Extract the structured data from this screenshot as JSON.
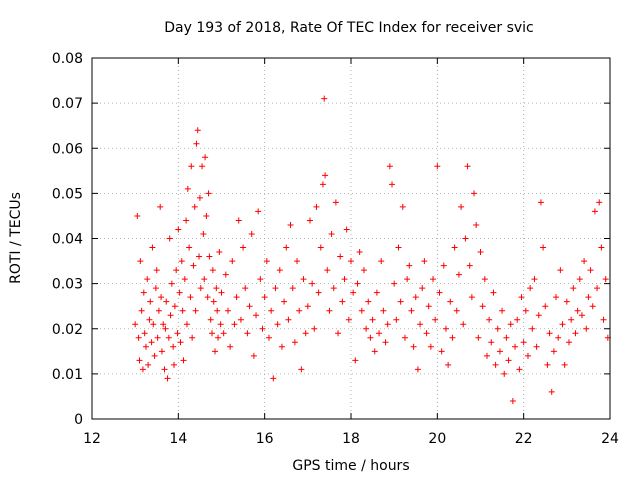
{
  "chart_data": {
    "type": "scatter",
    "title": "Day 193 of 2018, Rate Of TEC Index for receiver svic",
    "xlabel": "GPS time / hours",
    "ylabel": "ROTI / TECUs",
    "xlim": [
      12,
      24
    ],
    "ylim": [
      0,
      0.08
    ],
    "xticks": [
      12,
      14,
      16,
      18,
      20,
      22,
      24
    ],
    "xtick_labels": [
      "12",
      "14",
      "16",
      "18",
      "20",
      "22",
      "24"
    ],
    "yticks": [
      0,
      0.01,
      0.02,
      0.03,
      0.04,
      0.05,
      0.06,
      0.07,
      0.08
    ],
    "ytick_labels": [
      "0",
      "0.01",
      "0.02",
      "0.03",
      "0.04",
      "0.05",
      "0.06",
      "0.07",
      "0.08"
    ],
    "grid": true,
    "marker": "+",
    "color": "#ff0000",
    "series": [
      {
        "name": "ROTI",
        "points": [
          [
            13.0,
            0.021
          ],
          [
            13.05,
            0.045
          ],
          [
            13.08,
            0.018
          ],
          [
            13.1,
            0.013
          ],
          [
            13.12,
            0.035
          ],
          [
            13.15,
            0.024
          ],
          [
            13.18,
            0.011
          ],
          [
            13.2,
            0.028
          ],
          [
            13.22,
            0.019
          ],
          [
            13.25,
            0.016
          ],
          [
            13.28,
            0.031
          ],
          [
            13.3,
            0.012
          ],
          [
            13.33,
            0.022
          ],
          [
            13.35,
            0.026
          ],
          [
            13.38,
            0.017
          ],
          [
            13.4,
            0.038
          ],
          [
            13.42,
            0.021
          ],
          [
            13.45,
            0.014
          ],
          [
            13.48,
            0.029
          ],
          [
            13.5,
            0.033
          ],
          [
            13.52,
            0.018
          ],
          [
            13.55,
            0.024
          ],
          [
            13.58,
            0.047
          ],
          [
            13.6,
            0.027
          ],
          [
            13.62,
            0.015
          ],
          [
            13.65,
            0.021
          ],
          [
            13.68,
            0.011
          ],
          [
            13.7,
            0.02
          ],
          [
            13.72,
            0.026
          ],
          [
            13.75,
            0.009
          ],
          [
            13.78,
            0.018
          ],
          [
            13.8,
            0.04
          ],
          [
            13.82,
            0.023
          ],
          [
            13.85,
            0.03
          ],
          [
            13.88,
            0.016
          ],
          [
            13.9,
            0.012
          ],
          [
            13.92,
            0.025
          ],
          [
            13.95,
            0.033
          ],
          [
            13.98,
            0.019
          ],
          [
            14.0,
            0.042
          ],
          [
            14.03,
            0.028
          ],
          [
            14.05,
            0.017
          ],
          [
            14.08,
            0.035
          ],
          [
            14.1,
            0.024
          ],
          [
            14.12,
            0.013
          ],
          [
            14.15,
            0.031
          ],
          [
            14.18,
            0.044
          ],
          [
            14.2,
            0.021
          ],
          [
            14.22,
            0.051
          ],
          [
            14.25,
            0.038
          ],
          [
            14.28,
            0.027
          ],
          [
            14.3,
            0.056
          ],
          [
            14.32,
            0.018
          ],
          [
            14.35,
            0.034
          ],
          [
            14.38,
            0.047
          ],
          [
            14.4,
            0.024
          ],
          [
            14.42,
            0.061
          ],
          [
            14.45,
            0.064
          ],
          [
            14.48,
            0.036
          ],
          [
            14.5,
            0.049
          ],
          [
            14.52,
            0.029
          ],
          [
            14.55,
            0.056
          ],
          [
            14.58,
            0.041
          ],
          [
            14.6,
            0.031
          ],
          [
            14.62,
            0.058
          ],
          [
            14.65,
            0.045
          ],
          [
            14.68,
            0.027
          ],
          [
            14.7,
            0.05
          ],
          [
            14.72,
            0.036
          ],
          [
            14.75,
            0.022
          ],
          [
            14.78,
            0.019
          ],
          [
            14.8,
            0.033
          ],
          [
            14.82,
            0.026
          ],
          [
            14.85,
            0.015
          ],
          [
            14.88,
            0.029
          ],
          [
            14.9,
            0.024
          ],
          [
            14.92,
            0.018
          ],
          [
            14.95,
            0.037
          ],
          [
            14.98,
            0.021
          ],
          [
            15.0,
            0.028
          ],
          [
            15.05,
            0.019
          ],
          [
            15.1,
            0.032
          ],
          [
            15.15,
            0.024
          ],
          [
            15.2,
            0.016
          ],
          [
            15.25,
            0.035
          ],
          [
            15.3,
            0.021
          ],
          [
            15.35,
            0.027
          ],
          [
            15.4,
            0.044
          ],
          [
            15.45,
            0.022
          ],
          [
            15.5,
            0.038
          ],
          [
            15.55,
            0.029
          ],
          [
            15.6,
            0.019
          ],
          [
            15.65,
            0.025
          ],
          [
            15.7,
            0.041
          ],
          [
            15.75,
            0.014
          ],
          [
            15.8,
            0.023
          ],
          [
            15.85,
            0.046
          ],
          [
            15.9,
            0.031
          ],
          [
            15.95,
            0.02
          ],
          [
            16.0,
            0.027
          ],
          [
            16.05,
            0.035
          ],
          [
            16.1,
            0.018
          ],
          [
            16.15,
            0.024
          ],
          [
            16.2,
            0.009
          ],
          [
            16.25,
            0.029
          ],
          [
            16.3,
            0.021
          ],
          [
            16.35,
            0.033
          ],
          [
            16.4,
            0.016
          ],
          [
            16.45,
            0.026
          ],
          [
            16.5,
            0.038
          ],
          [
            16.55,
            0.022
          ],
          [
            16.6,
            0.043
          ],
          [
            16.65,
            0.029
          ],
          [
            16.7,
            0.017
          ],
          [
            16.75,
            0.035
          ],
          [
            16.8,
            0.024
          ],
          [
            16.85,
            0.011
          ],
          [
            16.9,
            0.031
          ],
          [
            16.95,
            0.019
          ],
          [
            17.0,
            0.025
          ],
          [
            17.05,
            0.044
          ],
          [
            17.1,
            0.03
          ],
          [
            17.15,
            0.02
          ],
          [
            17.2,
            0.047
          ],
          [
            17.25,
            0.028
          ],
          [
            17.3,
            0.038
          ],
          [
            17.35,
            0.052
          ],
          [
            17.38,
            0.071
          ],
          [
            17.4,
            0.054
          ],
          [
            17.45,
            0.033
          ],
          [
            17.5,
            0.024
          ],
          [
            17.55,
            0.041
          ],
          [
            17.6,
            0.029
          ],
          [
            17.65,
            0.048
          ],
          [
            17.7,
            0.019
          ],
          [
            17.75,
            0.036
          ],
          [
            17.8,
            0.026
          ],
          [
            17.85,
            0.031
          ],
          [
            17.9,
            0.042
          ],
          [
            17.95,
            0.022
          ],
          [
            18.0,
            0.035
          ],
          [
            18.05,
            0.028
          ],
          [
            18.1,
            0.013
          ],
          [
            18.15,
            0.03
          ],
          [
            18.2,
            0.037
          ],
          [
            18.25,
            0.024
          ],
          [
            18.3,
            0.033
          ],
          [
            18.35,
            0.02
          ],
          [
            18.4,
            0.026
          ],
          [
            18.45,
            0.018
          ],
          [
            18.5,
            0.022
          ],
          [
            18.55,
            0.015
          ],
          [
            18.6,
            0.028
          ],
          [
            18.65,
            0.019
          ],
          [
            18.7,
            0.035
          ],
          [
            18.75,
            0.024
          ],
          [
            18.8,
            0.017
          ],
          [
            18.85,
            0.021
          ],
          [
            18.9,
            0.056
          ],
          [
            18.95,
            0.052
          ],
          [
            19.0,
            0.03
          ],
          [
            19.05,
            0.022
          ],
          [
            19.1,
            0.038
          ],
          [
            19.15,
            0.026
          ],
          [
            19.2,
            0.047
          ],
          [
            19.25,
            0.018
          ],
          [
            19.3,
            0.031
          ],
          [
            19.35,
            0.034
          ],
          [
            19.4,
            0.024
          ],
          [
            19.45,
            0.016
          ],
          [
            19.5,
            0.027
          ],
          [
            19.55,
            0.011
          ],
          [
            19.6,
            0.021
          ],
          [
            19.65,
            0.029
          ],
          [
            19.7,
            0.035
          ],
          [
            19.75,
            0.019
          ],
          [
            19.8,
            0.025
          ],
          [
            19.85,
            0.016
          ],
          [
            19.9,
            0.031
          ],
          [
            19.95,
            0.022
          ],
          [
            20.0,
            0.056
          ],
          [
            20.05,
            0.028
          ],
          [
            20.1,
            0.015
          ],
          [
            20.15,
            0.034
          ],
          [
            20.2,
            0.02
          ],
          [
            20.25,
            0.012
          ],
          [
            20.3,
            0.026
          ],
          [
            20.35,
            0.018
          ],
          [
            20.4,
            0.038
          ],
          [
            20.45,
            0.024
          ],
          [
            20.5,
            0.032
          ],
          [
            20.55,
            0.047
          ],
          [
            20.6,
            0.021
          ],
          [
            20.65,
            0.04
          ],
          [
            20.7,
            0.056
          ],
          [
            20.75,
            0.034
          ],
          [
            20.8,
            0.027
          ],
          [
            20.85,
            0.05
          ],
          [
            20.9,
            0.043
          ],
          [
            20.95,
            0.018
          ],
          [
            21.0,
            0.037
          ],
          [
            21.05,
            0.025
          ],
          [
            21.1,
            0.031
          ],
          [
            21.15,
            0.014
          ],
          [
            21.2,
            0.022
          ],
          [
            21.25,
            0.017
          ],
          [
            21.3,
            0.028
          ],
          [
            21.35,
            0.012
          ],
          [
            21.4,
            0.02
          ],
          [
            21.45,
            0.015
          ],
          [
            21.5,
            0.024
          ],
          [
            21.55,
            0.01
          ],
          [
            21.6,
            0.018
          ],
          [
            21.65,
            0.013
          ],
          [
            21.7,
            0.021
          ],
          [
            21.75,
            0.004
          ],
          [
            21.8,
            0.016
          ],
          [
            21.85,
            0.022
          ],
          [
            21.9,
            0.011
          ],
          [
            21.95,
            0.027
          ],
          [
            22.0,
            0.017
          ],
          [
            22.05,
            0.024
          ],
          [
            22.1,
            0.014
          ],
          [
            22.15,
            0.029
          ],
          [
            22.2,
            0.02
          ],
          [
            22.25,
            0.031
          ],
          [
            22.3,
            0.016
          ],
          [
            22.35,
            0.023
          ],
          [
            22.4,
            0.048
          ],
          [
            22.45,
            0.038
          ],
          [
            22.5,
            0.025
          ],
          [
            22.55,
            0.012
          ],
          [
            22.6,
            0.019
          ],
          [
            22.65,
            0.006
          ],
          [
            22.7,
            0.015
          ],
          [
            22.75,
            0.027
          ],
          [
            22.8,
            0.018
          ],
          [
            22.85,
            0.033
          ],
          [
            22.9,
            0.021
          ],
          [
            22.95,
            0.012
          ],
          [
            23.0,
            0.026
          ],
          [
            23.05,
            0.017
          ],
          [
            23.1,
            0.022
          ],
          [
            23.15,
            0.029
          ],
          [
            23.2,
            0.019
          ],
          [
            23.25,
            0.024
          ],
          [
            23.3,
            0.031
          ],
          [
            23.35,
            0.023
          ],
          [
            23.4,
            0.035
          ],
          [
            23.45,
            0.02
          ],
          [
            23.5,
            0.027
          ],
          [
            23.55,
            0.033
          ],
          [
            23.6,
            0.025
          ],
          [
            23.65,
            0.046
          ],
          [
            23.7,
            0.029
          ],
          [
            23.75,
            0.048
          ],
          [
            23.8,
            0.038
          ],
          [
            23.85,
            0.022
          ],
          [
            23.9,
            0.031
          ],
          [
            23.95,
            0.018
          ]
        ]
      }
    ]
  }
}
